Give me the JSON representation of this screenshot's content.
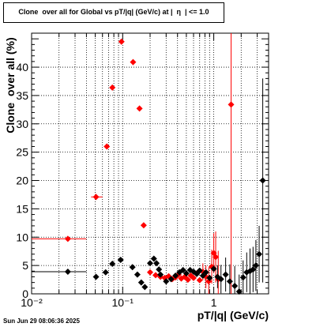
{
  "title": "Clone  over all for Global vs pT/|q| (GeV/c) at |  η  | <= 1.0",
  "footer_timestamp": "Sun Jun 29 08:06:36 2025",
  "chart_data": {
    "type": "scatter",
    "title": "Clone  over all for Global vs pT/|q| (GeV/c) at |  η  | <= 1.0",
    "xlabel": "pT/|q| (GeV/c)",
    "ylabel": "Clone  over all (%)",
    "xscale": "log",
    "xlim": [
      0.01,
      4.0
    ],
    "ylim": [
      0,
      46
    ],
    "grid": true,
    "x_tick_labels": [
      "10⁻²",
      "10⁻¹",
      "1"
    ],
    "y_tick_labels": [
      "0",
      "5",
      "10",
      "15",
      "20",
      "25",
      "30",
      "35",
      "40"
    ],
    "colors": {
      "red": "#ff0000",
      "black": "#000000"
    },
    "series": [
      {
        "color": "#ff0000",
        "points": [
          {
            "x": 0.025,
            "y": 9.7,
            "xerr": [
              0.01,
              0.04
            ],
            "yerr": 0.4
          },
          {
            "x": 0.051,
            "y": 17.1,
            "xerr": [
              0.045,
              0.06
            ],
            "yerr": 0.5
          },
          {
            "x": 0.067,
            "y": 26.0
          },
          {
            "x": 0.077,
            "y": 36.4
          },
          {
            "x": 0.097,
            "y": 44.5
          },
          {
            "x": 0.13,
            "y": 40.9
          },
          {
            "x": 0.153,
            "y": 32.7
          },
          {
            "x": 0.17,
            "y": 12.1
          },
          {
            "x": 0.2,
            "y": 3.8
          },
          {
            "x": 0.23,
            "y": 3.3
          },
          {
            "x": 0.26,
            "y": 3.0
          },
          {
            "x": 0.29,
            "y": 2.8
          },
          {
            "x": 0.32,
            "y": 3.1
          },
          {
            "x": 0.35,
            "y": 2.6
          },
          {
            "x": 0.38,
            "y": 2.9
          },
          {
            "x": 0.41,
            "y": 3.4
          },
          {
            "x": 0.44,
            "y": 2.7
          },
          {
            "x": 0.48,
            "y": 3.0
          },
          {
            "x": 0.52,
            "y": 2.5
          },
          {
            "x": 0.56,
            "y": 3.2
          },
          {
            "x": 0.6,
            "y": 2.8
          },
          {
            "x": 0.65,
            "y": 3.6
          },
          {
            "x": 0.7,
            "y": 2.4
          },
          {
            "x": 0.76,
            "y": 3.9,
            "yerr": 1.5
          },
          {
            "x": 0.82,
            "y": 3.0,
            "yerr": 2.0
          },
          {
            "x": 0.88,
            "y": 2.2,
            "yerr": 2.5
          },
          {
            "x": 0.95,
            "y": 4.8,
            "yerr": 3.0
          },
          {
            "x": 1.0,
            "y": 7.2,
            "yerr": 3.5
          },
          {
            "x": 1.05,
            "y": 6.5,
            "yerr": 4.5
          },
          {
            "x": 1.12,
            "y": 2.6,
            "yerr": 5.0
          },
          {
            "x": 1.55,
            "y": 33.4,
            "yerr": 33.4
          }
        ]
      },
      {
        "color": "#000000",
        "points": [
          {
            "x": 0.025,
            "y": 3.9,
            "xerr": [
              0.01,
              0.04
            ],
            "yerr": 0.3
          },
          {
            "x": 0.051,
            "y": 3.0
          },
          {
            "x": 0.065,
            "y": 3.8
          },
          {
            "x": 0.077,
            "y": 5.3
          },
          {
            "x": 0.095,
            "y": 6.0
          },
          {
            "x": 0.128,
            "y": 4.7
          },
          {
            "x": 0.145,
            "y": 3.4
          },
          {
            "x": 0.16,
            "y": 2.0
          },
          {
            "x": 0.175,
            "y": 1.2
          },
          {
            "x": 0.2,
            "y": 5.4
          },
          {
            "x": 0.22,
            "y": 6.2
          },
          {
            "x": 0.235,
            "y": 5.4
          },
          {
            "x": 0.25,
            "y": 4.3
          },
          {
            "x": 0.26,
            "y": 3.4
          },
          {
            "x": 0.3,
            "y": 2.2
          },
          {
            "x": 0.34,
            "y": 2.6
          },
          {
            "x": 0.38,
            "y": 3.2
          },
          {
            "x": 0.42,
            "y": 3.8
          },
          {
            "x": 0.46,
            "y": 4.2
          },
          {
            "x": 0.5,
            "y": 3.6
          },
          {
            "x": 0.55,
            "y": 4.2
          },
          {
            "x": 0.6,
            "y": 3.9
          },
          {
            "x": 0.65,
            "y": 3.5
          },
          {
            "x": 0.7,
            "y": 4.1
          },
          {
            "x": 0.76,
            "y": 3.2
          },
          {
            "x": 0.82,
            "y": 3.8
          },
          {
            "x": 0.9,
            "y": 2.8
          },
          {
            "x": 1.0,
            "y": 4.4
          },
          {
            "x": 1.1,
            "y": 3.0,
            "yerr": 2.0
          },
          {
            "x": 1.2,
            "y": 2.6,
            "yerr": 2.5
          },
          {
            "x": 1.35,
            "y": 3.4,
            "yerr": 3.0
          },
          {
            "x": 1.5,
            "y": 2.2,
            "yerr": 3.0
          },
          {
            "x": 1.7,
            "y": 1.4,
            "yerr": 3.5
          },
          {
            "x": 1.9,
            "y": 0.4,
            "yerr": 3.0
          },
          {
            "x": 2.1,
            "y": 2.9,
            "yerr": 3.0
          },
          {
            "x": 2.3,
            "y": 3.8,
            "yerr": 3.5
          },
          {
            "x": 2.5,
            "y": 4.0,
            "yerr": 4.0
          },
          {
            "x": 2.7,
            "y": 4.3,
            "yerr": 4.0
          },
          {
            "x": 2.9,
            "y": 5.0,
            "yerr": 4.5
          },
          {
            "x": 3.15,
            "y": 7.0,
            "yerr": 5.0
          },
          {
            "x": 3.45,
            "y": 20.0,
            "yerr": 18.0
          }
        ]
      }
    ]
  }
}
